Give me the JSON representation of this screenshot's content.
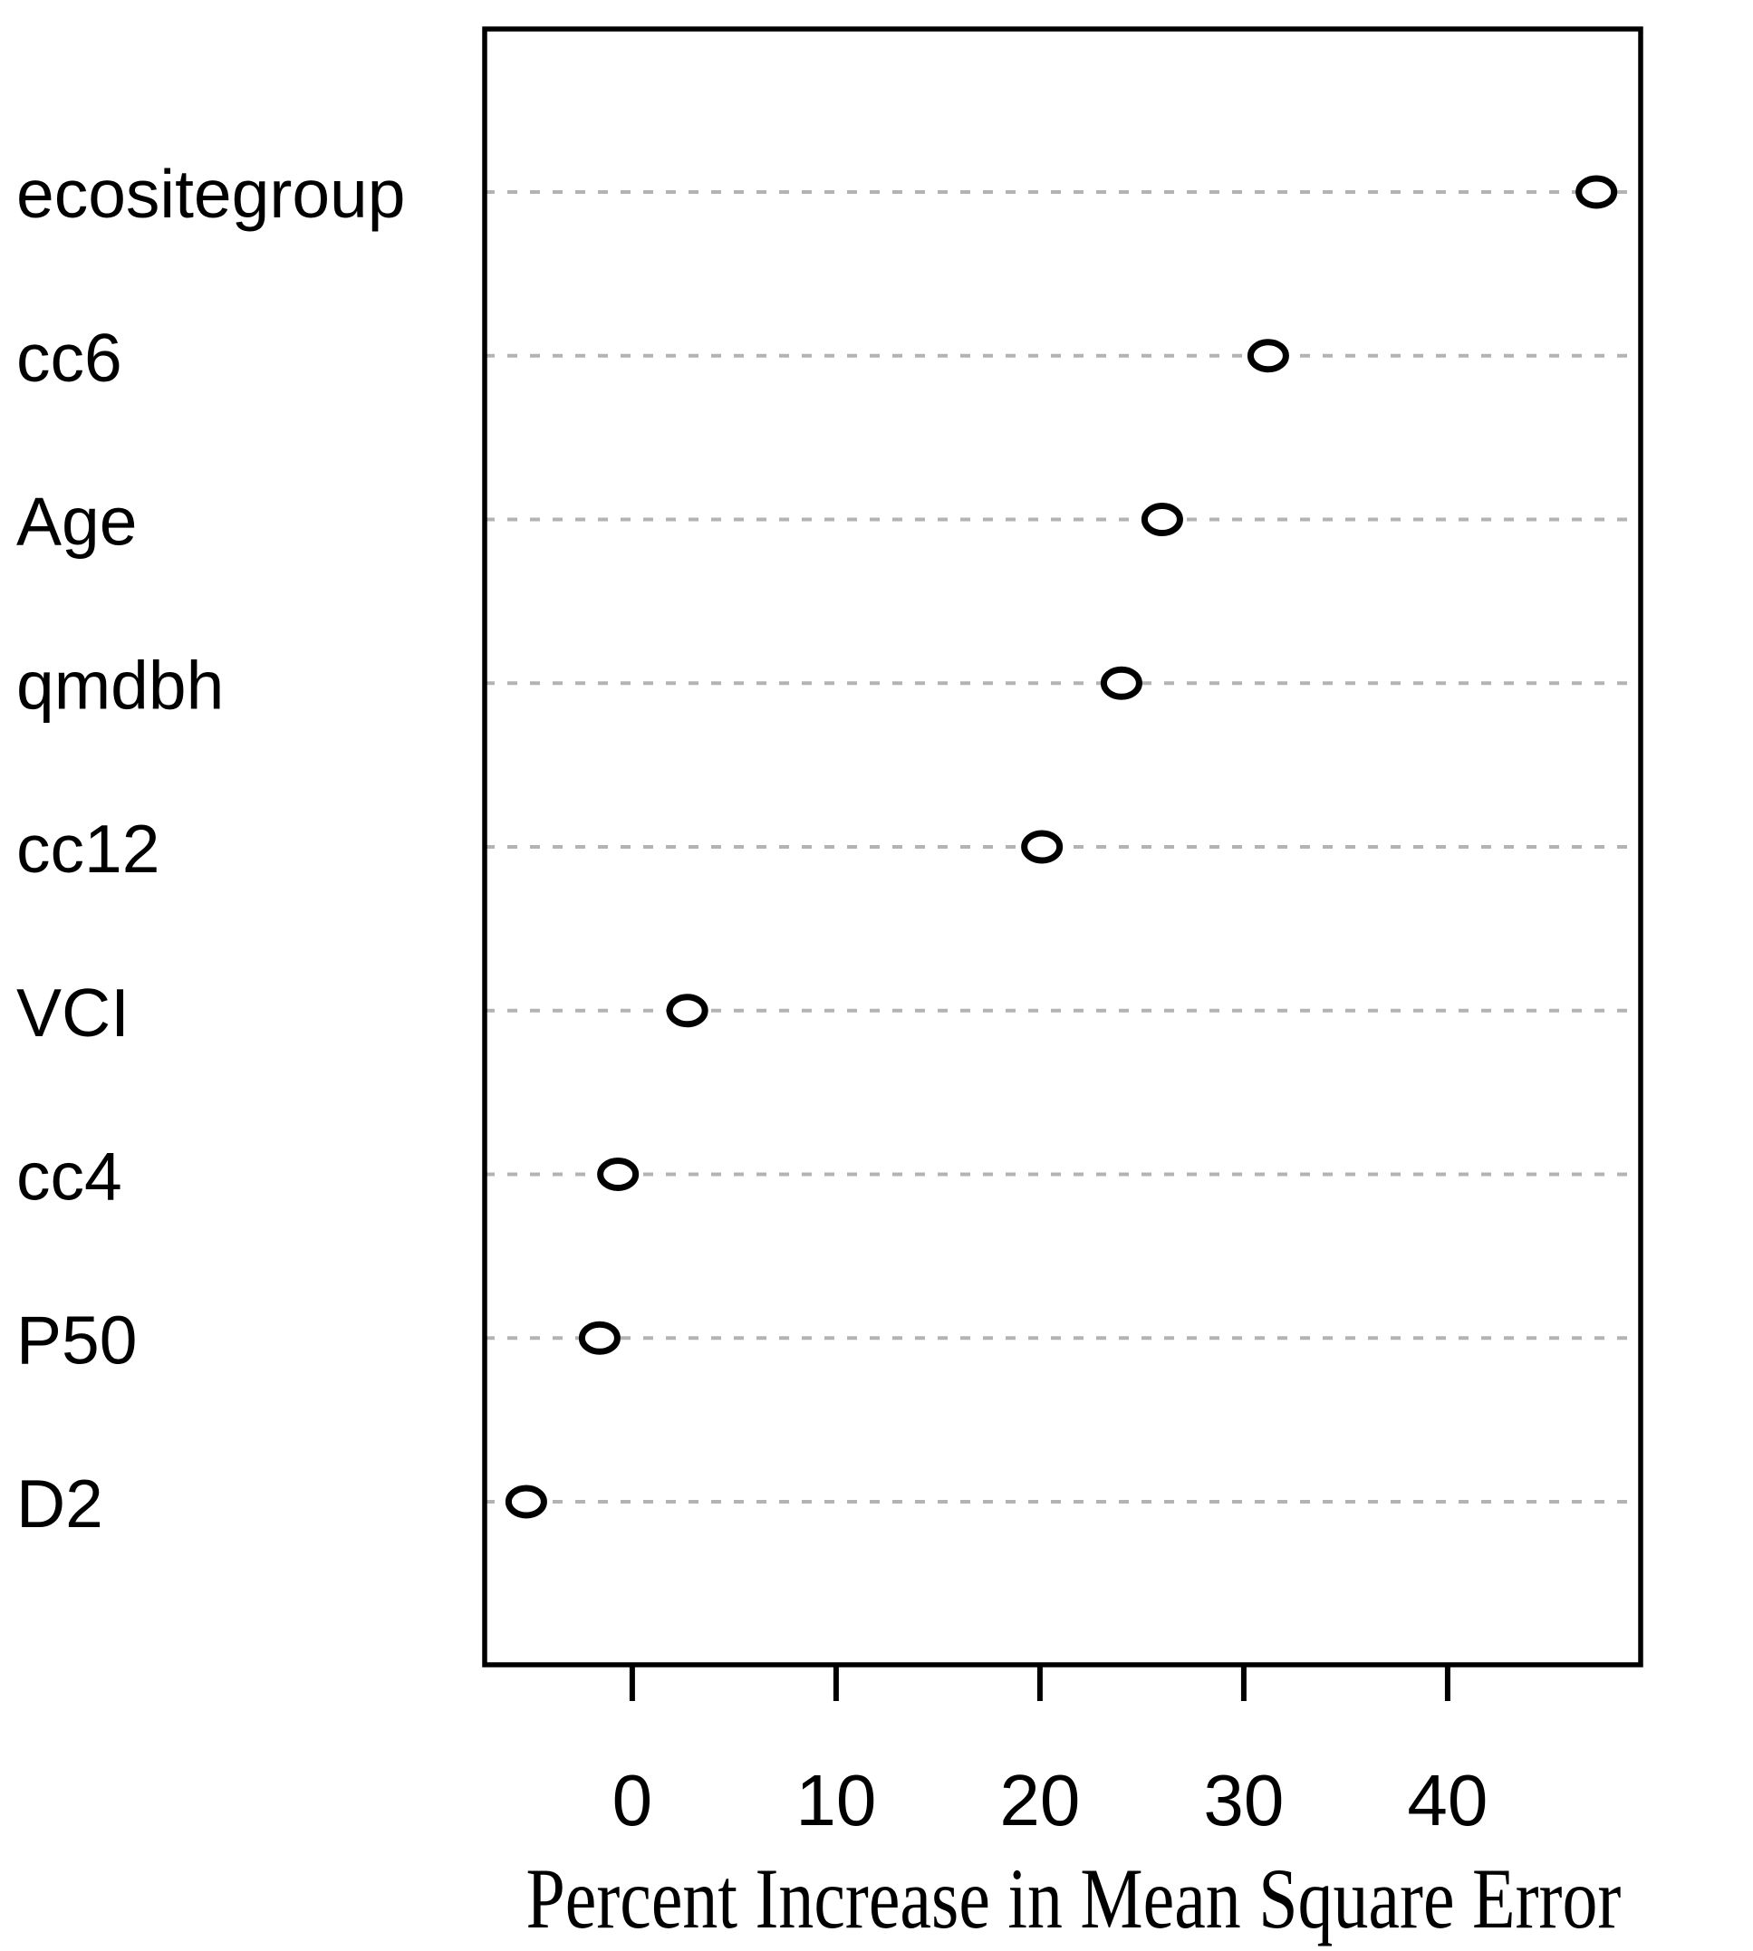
{
  "chart_data": {
    "type": "scatter",
    "subtype": "dot-chart-variable-importance",
    "title": "",
    "xlabel": "Percent Increase in Mean Square Error",
    "ylabel": "",
    "categories": [
      "ecositegroup",
      "cc6",
      "Age",
      "qmdbh",
      "cc12",
      "VCI",
      "cc4",
      "P50",
      "D2"
    ],
    "values": [
      47.3,
      31.2,
      26.0,
      24.0,
      20.1,
      2.7,
      -0.7,
      -1.6,
      -5.2
    ],
    "x_ticks": [
      0,
      10,
      20,
      30,
      40
    ],
    "xlim": [
      -7.24,
      49.47
    ],
    "grid": "horizontal dashed gridline per category",
    "legend": "none",
    "point_style": "open-circle",
    "colors": {
      "background": "#ffffff",
      "axis": "#000000",
      "text": "#000000",
      "gridline": "#b3b3b3",
      "point_stroke": "#000000",
      "point_fill": "#ffffff"
    }
  }
}
